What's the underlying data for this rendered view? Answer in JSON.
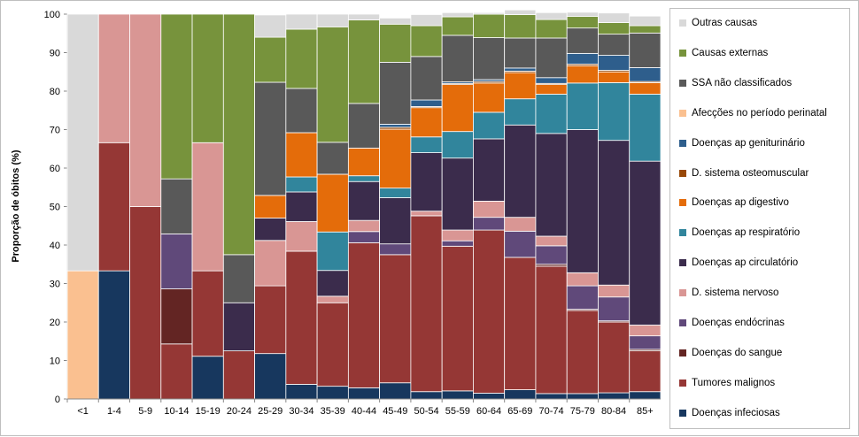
{
  "chart_data": {
    "type": "bar",
    "stacked": true,
    "ylabel": "Proporção de óbitos (%)",
    "xlabel": "",
    "ylim": [
      0,
      100
    ],
    "yticks": [
      0,
      10,
      20,
      30,
      40,
      50,
      60,
      70,
      80,
      90,
      100
    ],
    "grid": false,
    "legend_position": "right",
    "categories": [
      "<1",
      "1-4",
      "5-9",
      "10-14",
      "15-19",
      "20-24",
      "25-29",
      "30-34",
      "35-39",
      "40-44",
      "45-49",
      "50-54",
      "55-59",
      "60-64",
      "65-69",
      "70-74",
      "75-79",
      "80-84",
      "85+"
    ],
    "series": [
      {
        "name": "Doenças infeciosas",
        "color": "#17375e",
        "values": [
          0,
          33.3,
          0,
          0,
          11.1,
          0,
          11.8,
          3.8,
          3.3,
          2.9,
          4.2,
          1.9,
          2.1,
          1.5,
          2.4,
          1.4,
          1.4,
          1.6,
          1.9
        ]
      },
      {
        "name": "Tumores malignos",
        "color": "#953735",
        "values": [
          0,
          33.3,
          50,
          14.3,
          22.2,
          12.5,
          17.6,
          34.6,
          21.7,
          37.7,
          33.3,
          45.7,
          37.6,
          42.4,
          34.4,
          33.1,
          21.6,
          18.4,
          10.6
        ]
      },
      {
        "name": "Doenças do sangue",
        "color": "#632523",
        "values": [
          0,
          0,
          0,
          14.3,
          0,
          0,
          0,
          0,
          0,
          0,
          0,
          0,
          0,
          0,
          0,
          0.5,
          0.3,
          0.3,
          0.4
        ]
      },
      {
        "name": "Doenças endócrinas",
        "color": "#60497a",
        "values": [
          0,
          0,
          0,
          14.3,
          0,
          0,
          0,
          0,
          0,
          2.9,
          2.8,
          0,
          1.4,
          3.3,
          6.8,
          4.8,
          6.1,
          6.2,
          3.5
        ]
      },
      {
        "name": "D. sistema nervoso",
        "color": "#d99694",
        "values": [
          0,
          33.4,
          50,
          0,
          33.3,
          0,
          11.8,
          7.7,
          1.7,
          2.9,
          0,
          1.2,
          2.8,
          4.2,
          3.6,
          2.5,
          3.4,
          3.1,
          2.8
        ]
      },
      {
        "name": "Doenças ap circulatório",
        "color": "#3b2c4c",
        "values": [
          0,
          0,
          0,
          0,
          0,
          12.5,
          5.8,
          7.7,
          6.7,
          10.1,
          12.0,
          15.2,
          18.7,
          16.2,
          24.0,
          26.7,
          37.2,
          37.6,
          42.6
        ]
      },
      {
        "name": "Doenças ap respiratório",
        "color": "#31859c",
        "values": [
          0,
          0,
          0,
          0,
          0,
          0,
          0,
          3.9,
          10.0,
          1.5,
          2.5,
          4.1,
          6.9,
          6.9,
          6.8,
          10.2,
          12.1,
          15.0,
          17.4
        ]
      },
      {
        "name": "Doenças ap digestivo",
        "color": "#e46c0a",
        "values": [
          0,
          0,
          0,
          0,
          0,
          0,
          5.9,
          11.5,
          15.0,
          7.2,
          15.3,
          7.6,
          12.2,
          7.6,
          6.8,
          2.5,
          4.5,
          2.8,
          3.0
        ]
      },
      {
        "name": "D. sistema osteomuscular",
        "color": "#984807",
        "values": [
          0,
          0,
          0,
          0,
          0,
          0,
          0,
          0,
          0,
          0,
          0.5,
          0.3,
          0.3,
          0.4,
          0.4,
          0.3,
          0.4,
          0.4,
          0.3
        ]
      },
      {
        "name": "Doenças ap geniturinário",
        "color": "#2e5e8c",
        "values": [
          0,
          0,
          0,
          0,
          0,
          0,
          0,
          0,
          0,
          0,
          0.8,
          1.7,
          0.4,
          0.5,
          0.8,
          1.5,
          2.8,
          3.9,
          3.6
        ]
      },
      {
        "name": "Afecções no período perinatal",
        "color": "#fac090",
        "values": [
          33.3,
          0,
          0,
          0,
          0,
          0,
          0,
          0,
          0,
          0,
          0,
          0,
          0,
          0,
          0,
          0,
          0,
          0,
          0
        ]
      },
      {
        "name": "SSA não classificados",
        "color": "#595959",
        "values": [
          0,
          0,
          0,
          14.3,
          0,
          12.5,
          29.4,
          11.5,
          8.3,
          11.6,
          16.1,
          11.3,
          12.1,
          10.9,
          7.8,
          10.3,
          6.6,
          5.5,
          9.0
        ]
      },
      {
        "name": "Causas externas",
        "color": "#77933c",
        "values": [
          0,
          0,
          0,
          42.8,
          33.4,
          62.5,
          11.7,
          15.4,
          30.0,
          21.7,
          9.9,
          8.0,
          4.8,
          6.1,
          6.1,
          4.8,
          3.0,
          3.0,
          1.9
        ]
      },
      {
        "name": "Outras causas",
        "color": "#d9d9d9",
        "values": [
          66.7,
          0,
          0,
          0,
          0,
          0,
          5.8,
          3.9,
          3.3,
          1.5,
          1.6,
          2.9,
          1.1,
          0.4,
          1.2,
          1.8,
          1.1,
          2.5,
          2.5
        ]
      }
    ]
  }
}
